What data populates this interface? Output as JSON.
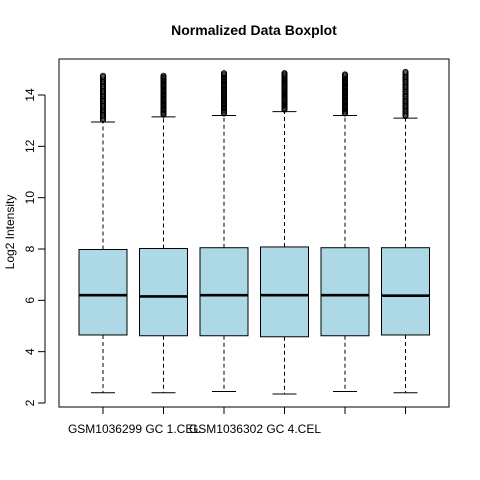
{
  "chart_data": {
    "type": "boxplot",
    "title": "Normalized Data Boxplot",
    "ylabel": "Log2 Intensity",
    "xlabel": "",
    "ylim": [
      1.9,
      15.4
    ],
    "yticks": [
      2,
      4,
      6,
      8,
      10,
      12,
      14
    ],
    "x_tick_labels": [
      "GSM1036299_GC_1.CEL",
      "",
      "GSM1036302_GC_4.CEL",
      "",
      "",
      ""
    ],
    "x_tick_labels_display": [
      "GSM1036299_GC_1.CEL",
      "GSM1036302_GC_4.CEL"
    ],
    "box_fill": "#add8e6",
    "series": [
      {
        "min": 2.4,
        "q1": 4.65,
        "median": 6.2,
        "q3": 7.98,
        "max": 12.95,
        "outlier_max": 14.75
      },
      {
        "min": 2.4,
        "q1": 4.62,
        "median": 6.15,
        "q3": 8.02,
        "max": 13.15,
        "outlier_max": 14.75
      },
      {
        "min": 2.45,
        "q1": 4.62,
        "median": 6.2,
        "q3": 8.05,
        "max": 13.2,
        "outlier_max": 14.85
      },
      {
        "min": 2.35,
        "q1": 4.58,
        "median": 6.2,
        "q3": 8.08,
        "max": 13.35,
        "outlier_max": 14.85
      },
      {
        "min": 2.45,
        "q1": 4.62,
        "median": 6.2,
        "q3": 8.05,
        "max": 13.2,
        "outlier_max": 14.8
      },
      {
        "min": 2.4,
        "q1": 4.65,
        "median": 6.18,
        "q3": 8.05,
        "max": 13.1,
        "outlier_max": 14.9
      }
    ]
  }
}
